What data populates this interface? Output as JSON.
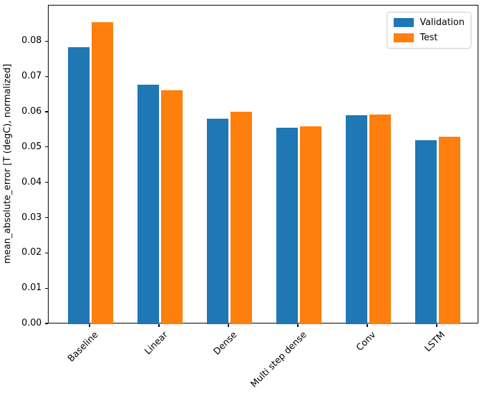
{
  "figure": {
    "background": "#ffffff"
  },
  "chart_data": {
    "type": "bar",
    "title": "",
    "xlabel": "",
    "ylabel": "mean_absolute_error [T (degC), normalized]",
    "categories": [
      "Baseline",
      "Linear",
      "Dense",
      "Multi step dense",
      "Conv",
      "LSTM"
    ],
    "series": [
      {
        "name": "Validation",
        "color": "#1f77b4",
        "values": [
          0.0785,
          0.0678,
          0.0582,
          0.0556,
          0.0593,
          0.0521
        ]
      },
      {
        "name": "Test",
        "color": "#ff7f0e",
        "values": [
          0.0855,
          0.0663,
          0.0602,
          0.056,
          0.0595,
          0.0531
        ]
      }
    ],
    "ylim": [
      0,
      0.0903
    ],
    "xlim": [
      -0.6,
      5.6
    ],
    "yticks": [
      0.0,
      0.01,
      0.02,
      0.03,
      0.04,
      0.05,
      0.06,
      0.07,
      0.08
    ],
    "ytick_format_decimals": 2,
    "xtick_rotation_deg": 45,
    "bar_width": 0.31,
    "bar_group_offset": 0.17,
    "legend": {
      "position": "upper right",
      "entries": [
        "Validation",
        "Test"
      ]
    },
    "grid": false,
    "spine_color": "#000000",
    "text_color": "#000000"
  }
}
